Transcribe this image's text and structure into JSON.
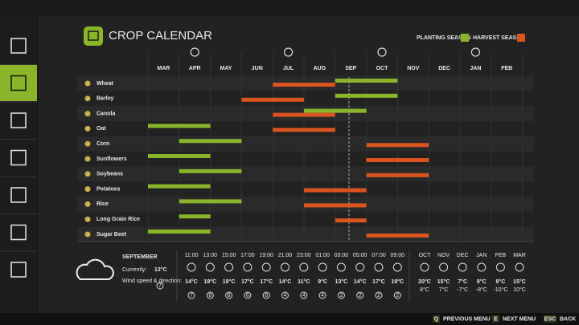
{
  "header": {
    "title": "CROP CALENDAR",
    "legend": [
      {
        "label": "PLANTING SEASON",
        "color": "#8ab52a"
      },
      {
        "label": "HARVEST SEASON",
        "color": "#d9541f"
      }
    ]
  },
  "months": [
    "MAR",
    "APR",
    "MAY",
    "JUN",
    "JUL",
    "AUG",
    "SEP",
    "OCT",
    "NOV",
    "DEC",
    "JAN",
    "FEB"
  ],
  "crops": [
    {
      "name": "Wheat",
      "planting": [
        [
          6,
          8
        ]
      ],
      "harvest": [
        [
          4,
          6
        ]
      ]
    },
    {
      "name": "Barley",
      "planting": [
        [
          6,
          8
        ]
      ],
      "harvest": [
        [
          3,
          5
        ]
      ]
    },
    {
      "name": "Canola",
      "planting": [
        [
          5,
          7
        ]
      ],
      "harvest": [
        [
          4,
          6
        ]
      ]
    },
    {
      "name": "Oat",
      "planting": [
        [
          0,
          2
        ]
      ],
      "harvest": [
        [
          4,
          6
        ]
      ]
    },
    {
      "name": "Corn",
      "planting": [
        [
          1,
          3
        ]
      ],
      "harvest": [
        [
          7,
          9
        ]
      ]
    },
    {
      "name": "Sunflowers",
      "planting": [
        [
          0,
          2
        ]
      ],
      "harvest": [
        [
          7,
          9
        ]
      ]
    },
    {
      "name": "Soybeans",
      "planting": [
        [
          1,
          3
        ]
      ],
      "harvest": [
        [
          7,
          9
        ]
      ]
    },
    {
      "name": "Potatoes",
      "planting": [
        [
          0,
          2
        ]
      ],
      "harvest": [
        [
          5,
          7
        ]
      ]
    },
    {
      "name": "Rice",
      "planting": [
        [
          1,
          3
        ]
      ],
      "harvest": [
        [
          5,
          7
        ]
      ]
    },
    {
      "name": "Long Grain Rice",
      "planting": [
        [
          1,
          2
        ]
      ],
      "harvest": [
        [
          6,
          7
        ]
      ]
    },
    {
      "name": "Sugar Beet",
      "planting": [
        [
          0,
          2
        ]
      ],
      "harvest": [
        [
          7,
          9
        ]
      ]
    }
  ],
  "weather": {
    "month": "SEPTEMBER",
    "current_label": "Currently:",
    "current_temp": "13°C",
    "wind_label": "Wind speed & direction:",
    "wind": "7",
    "hourly": [
      {
        "time": "11:00",
        "temp": "14°C",
        "wind": "7"
      },
      {
        "time": "13:00",
        "temp": "19°C",
        "wind": "8"
      },
      {
        "time": "15:00",
        "temp": "19°C",
        "wind": "8"
      },
      {
        "time": "17:00",
        "temp": "17°C",
        "wind": "6"
      },
      {
        "time": "19:00",
        "temp": "17°C",
        "wind": "6"
      },
      {
        "time": "21:00",
        "temp": "14°C",
        "wind": "4"
      },
      {
        "time": "23:00",
        "temp": "11°C",
        "wind": "4"
      },
      {
        "time": "01:00",
        "temp": "9°C",
        "wind": "4"
      },
      {
        "time": "03:00",
        "temp": "13°C",
        "wind": "2"
      },
      {
        "time": "05:00",
        "temp": "14°C",
        "wind": "2"
      },
      {
        "time": "07:00",
        "temp": "17°C",
        "wind": "2"
      },
      {
        "time": "09:00",
        "temp": "19°C",
        "wind": "2"
      }
    ],
    "monthly": [
      {
        "month": "OCT",
        "high": "20°C",
        "low": "8°C"
      },
      {
        "month": "NOV",
        "high": "15°C",
        "low": "7°C"
      },
      {
        "month": "DEC",
        "high": "7°C",
        "low": "-7°C"
      },
      {
        "month": "JAN",
        "high": "8°C",
        "low": "-8°C"
      },
      {
        "month": "FEB",
        "high": "8°C",
        "low": "-10°C"
      },
      {
        "month": "MAR",
        "high": "15°C",
        "low": "10°C"
      }
    ]
  },
  "footer": [
    {
      "key": "Q",
      "label": "PREVIOUS MENU"
    },
    {
      "key": "E",
      "label": "NEXT MENU"
    },
    {
      "key": "ESC",
      "label": "BACK"
    }
  ]
}
